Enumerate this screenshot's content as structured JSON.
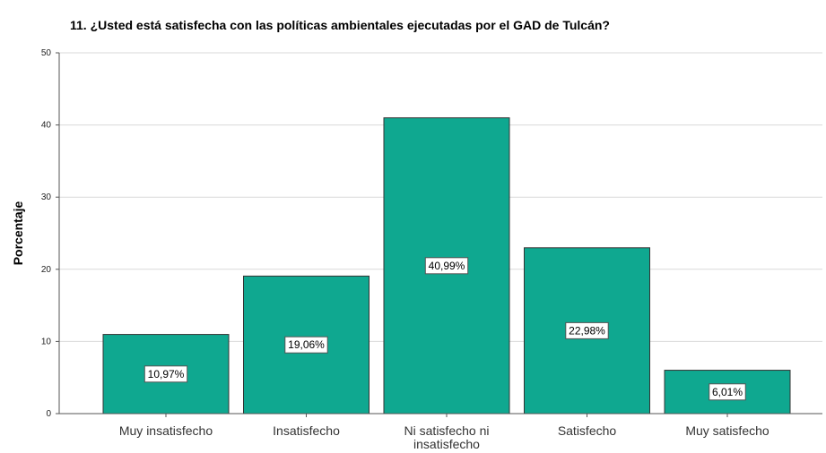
{
  "chart_data": {
    "type": "bar",
    "title": "11. ¿Usted está satisfecha con las políticas ambientales ejecutadas por el GAD de Tulcán?",
    "xlabel": "",
    "ylabel": "Porcentaje",
    "ylim": [
      0,
      50
    ],
    "yticks": [
      "0",
      "10",
      "20",
      "30",
      "40",
      "50"
    ],
    "categories": [
      [
        "Muy insatisfecho"
      ],
      [
        "Insatisfecho"
      ],
      [
        "Ni satisfecho ni",
        "insatisfecho"
      ],
      [
        "Satisfecho"
      ],
      [
        "Muy satisfecho"
      ]
    ],
    "values": [
      10.97,
      19.06,
      40.99,
      22.98,
      6.01
    ],
    "data_labels": [
      "10,97%",
      "19,06%",
      "40,99%",
      "22,98%",
      "6,01%"
    ],
    "bar_color": "#0fa890",
    "grid": true,
    "legend": "none"
  }
}
